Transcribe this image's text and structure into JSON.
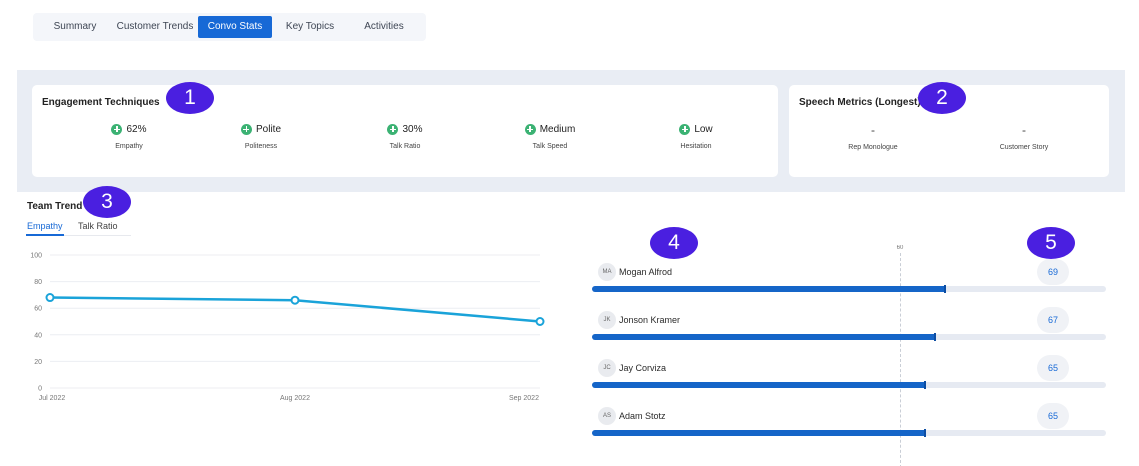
{
  "tabs": [
    {
      "label": "Summary",
      "active": false
    },
    {
      "label": "Customer Trends",
      "active": false
    },
    {
      "label": "Convo Stats",
      "active": true
    },
    {
      "label": "Key Topics",
      "active": false
    },
    {
      "label": "Activities",
      "active": false
    }
  ],
  "engagement": {
    "title": "Engagement Techniques",
    "metrics": [
      {
        "value": "62%",
        "label": "Empathy"
      },
      {
        "value": "Polite",
        "label": "Politeness"
      },
      {
        "value": "30%",
        "label": "Talk Ratio"
      },
      {
        "value": "Medium",
        "label": "Talk Speed"
      },
      {
        "value": "Low",
        "label": "Hesitation"
      }
    ]
  },
  "speech": {
    "title": "Speech Metrics (Longest)",
    "metrics": [
      {
        "value": "-",
        "label": "Rep Monologue"
      },
      {
        "value": "-",
        "label": "Customer Story"
      }
    ]
  },
  "badges": [
    "1",
    "2",
    "3",
    "4",
    "5"
  ],
  "team_trend": {
    "title": "Team Trend",
    "tabs": [
      {
        "label": "Empathy",
        "active": true
      },
      {
        "label": "Talk Ratio",
        "active": false
      }
    ]
  },
  "chart_data": {
    "type": "line",
    "x": [
      "Jul 2022",
      "Aug 2022",
      "Sep 2022"
    ],
    "series": [
      {
        "values": [
          68,
          66,
          50
        ],
        "color": "#1aa3d9"
      }
    ],
    "yticks": [
      0,
      20,
      40,
      60,
      80,
      100
    ],
    "ylim": [
      0,
      100
    ],
    "grid": true
  },
  "leaderboard": {
    "target": {
      "value": 60,
      "label": "60"
    },
    "scale_max": 100,
    "rows": [
      {
        "initials": "MA",
        "name": "Mogan Alfrod",
        "score": 69,
        "score_label": "69"
      },
      {
        "initials": "JK",
        "name": "Jonson Kramer",
        "score": 67,
        "score_label": "67"
      },
      {
        "initials": "JC",
        "name": "Jay Corviza",
        "score": 65,
        "score_label": "65"
      },
      {
        "initials": "AS",
        "name": "Adam Stotz",
        "score": 65,
        "score_label": "65"
      }
    ]
  },
  "colors": {
    "accent": "#1769d6",
    "badge": "#4a1fe0",
    "positive": "#3bb273",
    "line": "#1aa3d9",
    "bar": "#1565c8"
  }
}
